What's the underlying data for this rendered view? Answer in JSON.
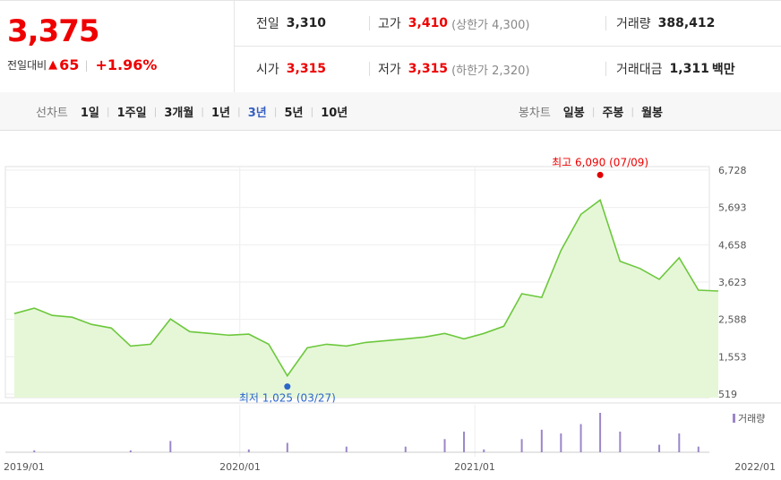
{
  "quote": {
    "price": "3,375",
    "change_label": "전일대비",
    "change_arrow": "▲",
    "change_value": "65",
    "change_pct": "+1.96%",
    "prev_label": "전일",
    "prev_value": "3,310",
    "high_label": "고가",
    "high_value": "3,410",
    "upper_limit": "(상한가 4,300)",
    "volume_label": "거래량",
    "volume_value": "388,412",
    "open_label": "시가",
    "open_value": "3,315",
    "low_label": "저가",
    "low_value": "3,315",
    "lower_limit": "(하한가 2,320)",
    "amount_label": "거래대금",
    "amount_value": "1,311",
    "amount_unit": "백만"
  },
  "tabs": {
    "line_title": "선차트",
    "line_tabs": [
      "1일",
      "1주일",
      "3개월",
      "1년",
      "3년",
      "5년",
      "10년"
    ],
    "active_line_tab": "3년",
    "candle_title": "봉차트",
    "candle_tabs": [
      "일봉",
      "주봉",
      "월봉"
    ]
  },
  "chart_data": {
    "type": "area",
    "y_ticks": [
      "6,728",
      "5,693",
      "4,658",
      "3,623",
      "2,588",
      "1,553",
      "519"
    ],
    "ylim": [
      519,
      6728
    ],
    "x_ticks": [
      "2019/01",
      "2020/01",
      "2021/01",
      "2022/01"
    ],
    "high_annotation": "최고 6,090 (07/09)",
    "low_annotation": "최저 1,025 (03/27)",
    "volume_legend": "거래량",
    "colors": {
      "line": "#6cc83c",
      "fill": "#e6f7d8",
      "high": "#e00000",
      "low": "#2b66c9",
      "volume": "#9b86c8"
    },
    "price_series": [
      {
        "x": "2019-01",
        "y": 2750
      },
      {
        "x": "2019-02",
        "y": 2900
      },
      {
        "x": "2019-03",
        "y": 2700
      },
      {
        "x": "2019-04",
        "y": 2650
      },
      {
        "x": "2019-05",
        "y": 2450
      },
      {
        "x": "2019-06",
        "y": 2350
      },
      {
        "x": "2019-07",
        "y": 1850
      },
      {
        "x": "2019-08",
        "y": 1900
      },
      {
        "x": "2019-09",
        "y": 2600
      },
      {
        "x": "2019-10",
        "y": 2250
      },
      {
        "x": "2019-11",
        "y": 2200
      },
      {
        "x": "2019-12",
        "y": 2150
      },
      {
        "x": "2020-01",
        "y": 2180
      },
      {
        "x": "2020-02",
        "y": 1900
      },
      {
        "x": "2020-03",
        "y": 1025
      },
      {
        "x": "2020-04",
        "y": 1800
      },
      {
        "x": "2020-05",
        "y": 1900
      },
      {
        "x": "2020-06",
        "y": 1850
      },
      {
        "x": "2020-07",
        "y": 1950
      },
      {
        "x": "2020-08",
        "y": 2000
      },
      {
        "x": "2020-09",
        "y": 2050
      },
      {
        "x": "2020-10",
        "y": 2100
      },
      {
        "x": "2020-11",
        "y": 2200
      },
      {
        "x": "2020-12",
        "y": 2050
      },
      {
        "x": "2021-01",
        "y": 2200
      },
      {
        "x": "2021-02",
        "y": 2400
      },
      {
        "x": "2021-03",
        "y": 3300
      },
      {
        "x": "2021-04",
        "y": 3200
      },
      {
        "x": "2021-05",
        "y": 4500
      },
      {
        "x": "2021-06",
        "y": 5500
      },
      {
        "x": "2021-07",
        "y": 5900
      },
      {
        "x": "2021-08",
        "y": 4200
      },
      {
        "x": "2021-09",
        "y": 4000
      },
      {
        "x": "2021-10",
        "y": 3700
      },
      {
        "x": "2021-11",
        "y": 4300
      },
      {
        "x": "2021-12",
        "y": 3400
      },
      {
        "x": "2022-01",
        "y": 3375
      }
    ],
    "volume_series": [
      {
        "x": "2019-02",
        "v": 2
      },
      {
        "x": "2019-07",
        "v": 2
      },
      {
        "x": "2019-09",
        "v": 12
      },
      {
        "x": "2020-01",
        "v": 3
      },
      {
        "x": "2020-03",
        "v": 10
      },
      {
        "x": "2020-06",
        "v": 6
      },
      {
        "x": "2020-09",
        "v": 6
      },
      {
        "x": "2020-11",
        "v": 14
      },
      {
        "x": "2020-12",
        "v": 22
      },
      {
        "x": "2021-01",
        "v": 3
      },
      {
        "x": "2021-03",
        "v": 14
      },
      {
        "x": "2021-04",
        "v": 24
      },
      {
        "x": "2021-05",
        "v": 20
      },
      {
        "x": "2021-06",
        "v": 30
      },
      {
        "x": "2021-07",
        "v": 42
      },
      {
        "x": "2021-08",
        "v": 22
      },
      {
        "x": "2021-10",
        "v": 8
      },
      {
        "x": "2021-11",
        "v": 20
      },
      {
        "x": "2021-12",
        "v": 6
      }
    ]
  }
}
